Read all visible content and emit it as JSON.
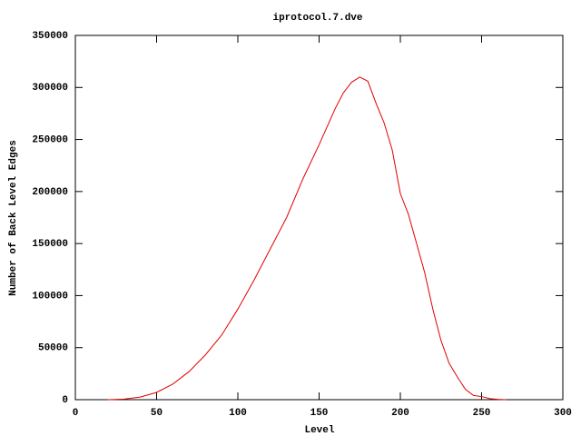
{
  "chart_data": {
    "type": "line",
    "title": "iprotocol.7.dve",
    "x_label": "Level",
    "y_label": "Number of Back Level Edges",
    "x": [
      20,
      30,
      40,
      50,
      60,
      70,
      80,
      90,
      100,
      110,
      120,
      130,
      140,
      150,
      160,
      165,
      170,
      175,
      180,
      185,
      190,
      195,
      200,
      205,
      210,
      215,
      220,
      225,
      230,
      235,
      240,
      245,
      250,
      255,
      260,
      265
    ],
    "series": [
      {
        "color": "#e00000",
        "values": [
          0,
          500,
          2500,
          7000,
          15000,
          27000,
          43000,
          62000,
          87000,
          115000,
          145000,
          175000,
          212000,
          245000,
          280000,
          295000,
          305000,
          310000,
          306000,
          285000,
          266000,
          240000,
          198000,
          178000,
          150000,
          122000,
          87000,
          57000,
          35000,
          22000,
          10000,
          4000,
          3000,
          1000,
          300,
          0
        ]
      }
    ],
    "xlim": [
      0,
      300
    ],
    "xticks": [
      0,
      50,
      100,
      150,
      200,
      250,
      300
    ],
    "ylim": [
      0,
      350000
    ],
    "yticks": [
      0,
      50000,
      100000,
      150000,
      200000,
      250000,
      300000,
      350000
    ],
    "grid": false
  }
}
